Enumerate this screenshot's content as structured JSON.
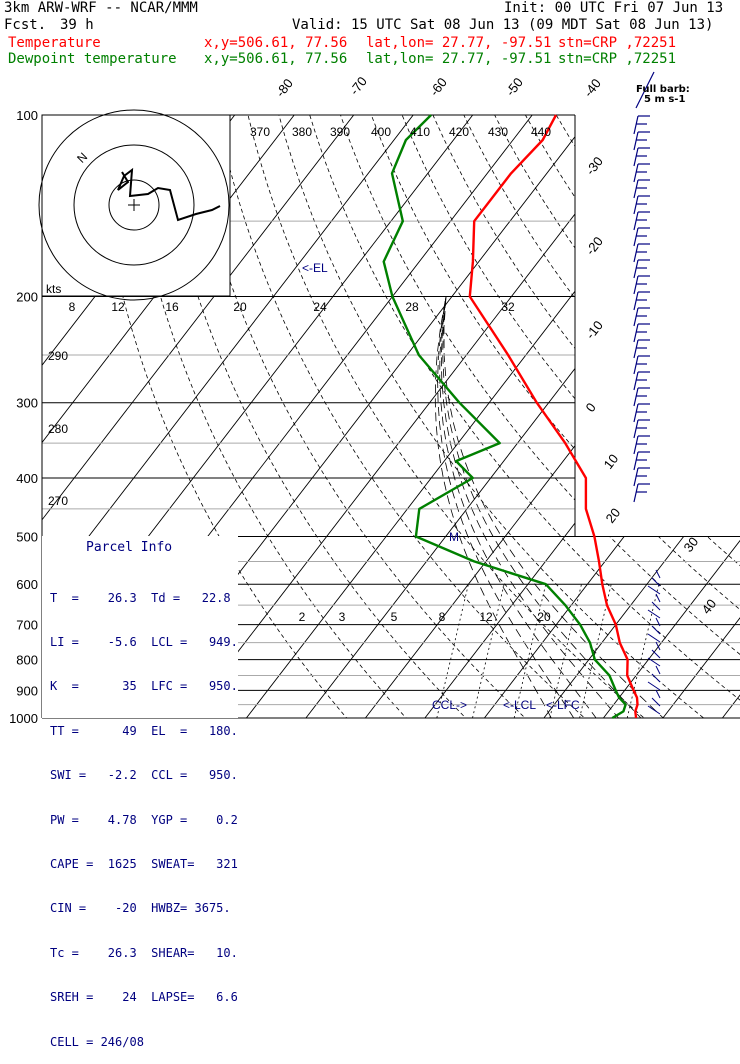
{
  "header": {
    "model": "3km ARW-WRF -- NCAR/MMM",
    "init": "Init: 00 UTC Fri 07 Jun 13",
    "fcst_label": "Fcst.",
    "fcst_value": "39 h",
    "valid": "Valid: 15 UTC Sat 08 Jun 13 (09 MDT Sat 08 Jun 13)",
    "temp_line": {
      "label": "Temperature",
      "xy": "x,y=506.61, 77.56",
      "latlon": "lat,lon= 27.77, -97.51",
      "stn": "stn=CRP ,72251",
      "color": "#ff0000"
    },
    "dew_line": {
      "label": "Dewpoint temperature",
      "xy": "x,y=506.61, 77.56",
      "latlon": "lat,lon= 27.77, -97.51",
      "stn": "stn=CRP ,72251",
      "color": "#008000"
    }
  },
  "barb_legend": {
    "line1": "Full barb:",
    "line2": "5 m s-1"
  },
  "hodograph": {
    "kts_label": "kts",
    "north_label": "N",
    "speed_ticks": [
      "8",
      "12",
      "16",
      "20",
      "24",
      "28",
      "32"
    ]
  },
  "el_marker": "<-EL",
  "m_marker": "M",
  "bottom_markers": {
    "ccl": "CCL->",
    "lcl": "<-LCL",
    "lfc": "<-LFC"
  },
  "parcel_info": {
    "title": "Parcel Info",
    "rows": [
      "T  =    26.3  Td =   22.8",
      "LI =    -5.6  LCL =   949.",
      "K  =      35  LFC =   950.",
      "TT =      49  EL  =   180.",
      "SWI =   -2.2  CCL =   950.",
      "PW =    4.78  YGP =    0.2",
      "CAPE =  1625  SWEAT=   321",
      "CIN =    -20  HWBZ= 3675.",
      "Tc =    26.3  SHEAR=   10.",
      "SREH =    24  LAPSE=   6.6",
      "CELL = 246/08"
    ]
  },
  "chart_data": {
    "type": "skew-t",
    "pressure_levels": [
      100,
      200,
      300,
      400,
      500,
      600,
      700,
      800,
      900,
      1000
    ],
    "isotherm_labels": [
      "-80",
      "-70",
      "-60",
      "-50",
      "-40",
      "-30",
      "-20",
      "-10",
      "0",
      "10",
      "20",
      "30",
      "40"
    ],
    "theta_labels": [
      "370",
      "380",
      "390",
      "400",
      "410",
      "420",
      "430",
      "440"
    ],
    "dry_adiabat_labels": [
      "290",
      "280",
      "270"
    ],
    "mixing_ratio_labels": [
      "2",
      "3",
      "5",
      "8",
      "12",
      "20"
    ],
    "series": [
      {
        "name": "Temperature",
        "color": "#ff0000",
        "points": [
          [
            1000,
            25.5
          ],
          [
            975,
            24.5
          ],
          [
            950,
            24
          ],
          [
            925,
            23
          ],
          [
            900,
            21.5
          ],
          [
            850,
            18.5
          ],
          [
            800,
            16.5
          ],
          [
            750,
            13
          ],
          [
            700,
            10
          ],
          [
            650,
            6
          ],
          [
            600,
            2.5
          ],
          [
            550,
            -1
          ],
          [
            500,
            -5
          ],
          [
            450,
            -10
          ],
          [
            400,
            -14
          ],
          [
            350,
            -22
          ],
          [
            300,
            -32
          ],
          [
            250,
            -43
          ],
          [
            200,
            -57
          ],
          [
            175,
            -61
          ],
          [
            150,
            -66
          ],
          [
            125,
            -66
          ],
          [
            110,
            -65
          ],
          [
            100,
            -66
          ]
        ]
      },
      {
        "name": "Dewpoint temperature",
        "color": "#008000",
        "points": [
          [
            1000,
            21.5
          ],
          [
            975,
            22.5
          ],
          [
            950,
            22
          ],
          [
            925,
            20
          ],
          [
            900,
            18.5
          ],
          [
            850,
            15.5
          ],
          [
            800,
            11
          ],
          [
            750,
            8
          ],
          [
            700,
            4
          ],
          [
            650,
            -1
          ],
          [
            600,
            -7
          ],
          [
            550,
            -22
          ],
          [
            500,
            -35
          ],
          [
            450,
            -38
          ],
          [
            400,
            -33
          ],
          [
            375,
            -38
          ],
          [
            350,
            -33
          ],
          [
            300,
            -45
          ],
          [
            250,
            -58
          ],
          [
            200,
            -70
          ],
          [
            175,
            -76
          ],
          [
            150,
            -78
          ],
          [
            125,
            -86
          ],
          [
            110,
            -88
          ],
          [
            100,
            -87
          ]
        ]
      }
    ]
  }
}
